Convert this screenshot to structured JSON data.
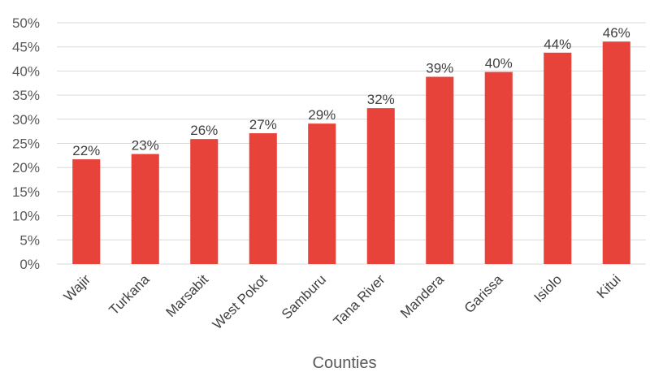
{
  "chart_data": {
    "type": "bar",
    "title": "",
    "xlabel": "Counties",
    "ylabel": "",
    "categories": [
      "Wajir",
      "Turkana",
      "Marsabit",
      "West Pokot",
      "Samburu",
      "Tana River",
      "Mandera",
      "Garissa",
      "Isiolo",
      "Kitui"
    ],
    "values": [
      21.7,
      22.8,
      25.9,
      27.1,
      29.1,
      32.3,
      38.8,
      39.8,
      43.8,
      46.1
    ],
    "data_labels": [
      "22%",
      "23%",
      "26%",
      "27%",
      "29%",
      "32%",
      "39%",
      "40%",
      "44%",
      "46%"
    ],
    "ylim": [
      0,
      50
    ],
    "yticks": [
      0,
      5,
      10,
      15,
      20,
      25,
      30,
      35,
      40,
      45,
      50
    ],
    "ytick_labels": [
      "0%",
      "5%",
      "10%",
      "15%",
      "20%",
      "25%",
      "30%",
      "35%",
      "40%",
      "45%",
      "50%"
    ],
    "grid": true,
    "legend": "none",
    "bar_color": "#e8433a"
  }
}
